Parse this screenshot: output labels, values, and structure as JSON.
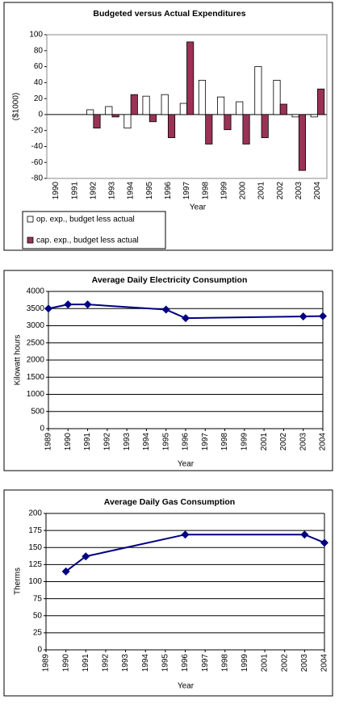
{
  "chart_data": [
    {
      "type": "bar",
      "title": "Budgeted versus Actual Expenditures",
      "x_label": "Year",
      "y_label": "($1000)",
      "categories": [
        "1990",
        "1991",
        "1992",
        "1993",
        "1994",
        "1995",
        "1996",
        "1997",
        "1998",
        "1999",
        "2000",
        "2001",
        "2002",
        "2003",
        "2004"
      ],
      "series": [
        {
          "name": "op. exp., budget less actual",
          "color": "#ffffff",
          "values": [
            null,
            null,
            6,
            10,
            -17,
            23,
            25,
            14,
            43,
            22,
            16,
            60,
            43,
            -3,
            -3
          ]
        },
        {
          "name": "cap. exp., budget less actual",
          "color": "#993355",
          "values": [
            null,
            null,
            -17,
            -3,
            25,
            -9,
            -29,
            91,
            -37,
            -19,
            -37,
            -29,
            13,
            -70,
            32
          ]
        }
      ],
      "ylim": [
        -80,
        100
      ],
      "yticks": [
        -80,
        -60,
        -40,
        -20,
        0,
        20,
        40,
        60,
        80,
        100
      ],
      "grid": false,
      "legend": "bottom"
    },
    {
      "type": "line",
      "title": "Average Daily Electricity Consumption",
      "x_label": "Year",
      "y_label": "Kilowatt hours",
      "categories": [
        "1989",
        "1990",
        "1991",
        "1992",
        "1993",
        "1994",
        "1995",
        "1996",
        "1997",
        "1998",
        "1999",
        "2001",
        "2002",
        "2003",
        "2004"
      ],
      "series": [
        {
          "color": "#000080",
          "x": [
            "1989",
            "1990",
            "1991",
            "1995",
            "1996",
            "2003",
            "2004"
          ],
          "values": [
            3500,
            3620,
            3620,
            3470,
            3220,
            3270,
            3280
          ]
        }
      ],
      "ylim": [
        0,
        4000
      ],
      "yticks": [
        0,
        500,
        1000,
        1500,
        2000,
        2500,
        3000,
        3500,
        4000
      ],
      "grid": true
    },
    {
      "type": "line",
      "title": "Average Daily Gas Consumption",
      "x_label": "Year",
      "y_label": "Therms",
      "categories": [
        "1989",
        "1990",
        "1991",
        "1992",
        "1993",
        "1994",
        "1995",
        "1996",
        "1997",
        "1998",
        "1999",
        "2001",
        "2002",
        "2003",
        "2004"
      ],
      "series": [
        {
          "color": "#000080",
          "x": [
            "1990",
            "1991",
            "1996",
            "2003",
            "2004"
          ],
          "values": [
            115,
            137,
            169,
            169,
            157
          ]
        }
      ],
      "ylim": [
        0,
        200
      ],
      "yticks": [
        0,
        25,
        50,
        75,
        100,
        125,
        150,
        175,
        200
      ],
      "grid": true
    }
  ]
}
